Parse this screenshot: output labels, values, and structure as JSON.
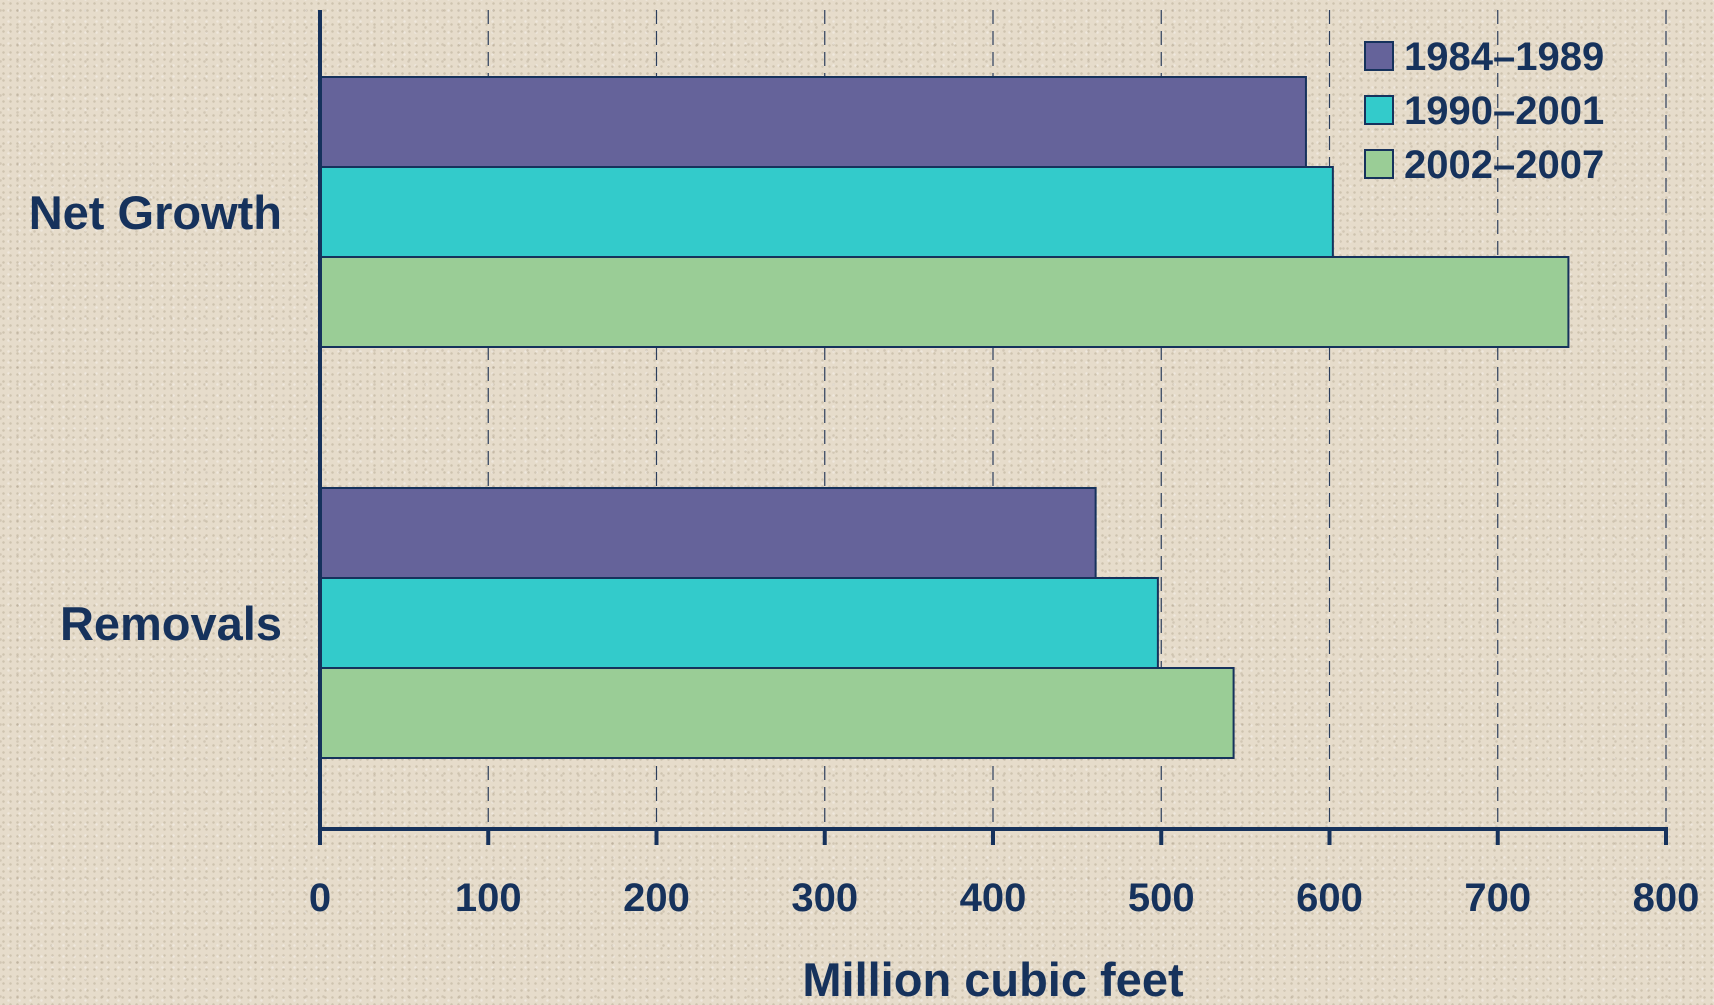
{
  "chart_data": {
    "type": "bar",
    "orientation": "horizontal",
    "categories": [
      "Net Growth",
      "Removals"
    ],
    "series": [
      {
        "name": "1984–1989",
        "values": [
          586,
          461
        ],
        "color": "#65639a"
      },
      {
        "name": "1990–2001",
        "values": [
          602,
          498
        ],
        "color": "#33cbcb"
      },
      {
        "name": "2002–2007",
        "values": [
          742,
          543
        ],
        "color": "#9acd96"
      }
    ],
    "xlabel": "Million cubic feet",
    "ylabel": "",
    "title": "",
    "xlim": [
      0,
      800
    ],
    "x_ticks": [
      "0",
      "100",
      "200",
      "300",
      "400",
      "500",
      "600",
      "700",
      "800"
    ],
    "grid": "vertical dashed",
    "legend_position": "top-right"
  },
  "colors": {
    "axis": "#16325c",
    "text": "#16325c",
    "grid": "#2c3e5c",
    "background": "#e6dccb"
  }
}
